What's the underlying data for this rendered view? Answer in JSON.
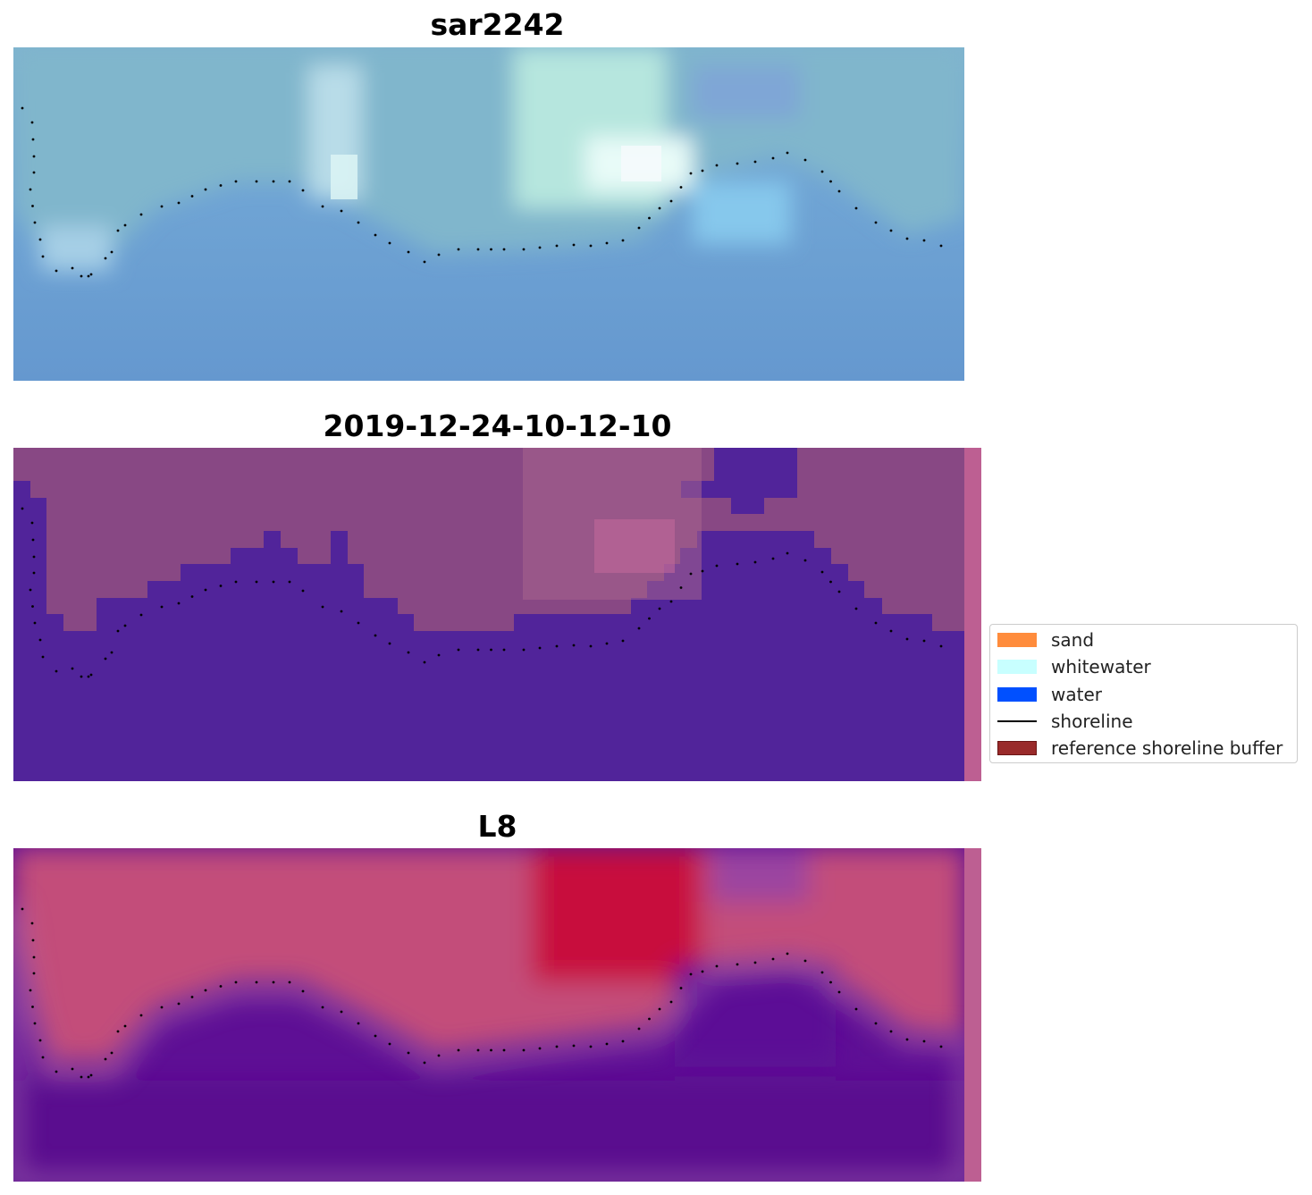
{
  "panels": [
    {
      "id": "rgb",
      "title": "sar2242"
    },
    {
      "id": "classified",
      "title": "2019-12-24-10-12-10"
    },
    {
      "id": "mndwi",
      "title": "L8"
    }
  ],
  "legend": {
    "items": [
      {
        "label": "sand",
        "color": "#ff8c3c",
        "kind": "patch"
      },
      {
        "label": "whitewater",
        "color": "#c8ffff",
        "kind": "patch"
      },
      {
        "label": "water",
        "color": "#0050ff",
        "kind": "patch"
      },
      {
        "label": "shoreline",
        "color": "#000000",
        "kind": "line"
      },
      {
        "label": "reference shoreline buffer",
        "color": "#992a2a",
        "kind": "patch"
      }
    ]
  },
  "colors": {
    "water_class": "#51249a",
    "non_water_class": "#884884",
    "buffer_strip": "#bd5f92"
  }
}
